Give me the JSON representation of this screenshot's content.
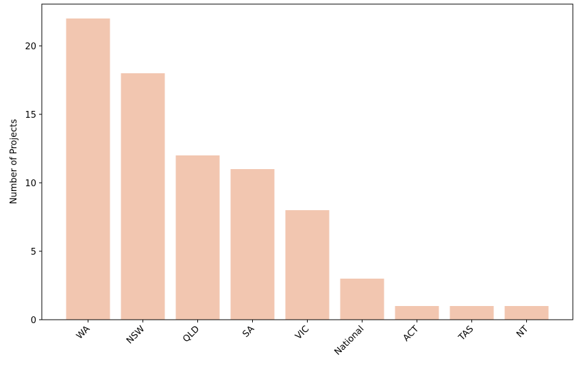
{
  "chart_data": {
    "type": "bar",
    "y_label": "Number of Projects",
    "categories": [
      "WA",
      "NSW",
      "QLD",
      "SA",
      "VIC",
      "National",
      "ACT",
      "TAS",
      "NT"
    ],
    "values": [
      22,
      18,
      12,
      11,
      8,
      3,
      1,
      1,
      1
    ],
    "color": "#f2c6b0",
    "ylim": [
      0,
      23.05
    ],
    "yticks": [
      0,
      5,
      10,
      15,
      20
    ],
    "grid": false
  }
}
